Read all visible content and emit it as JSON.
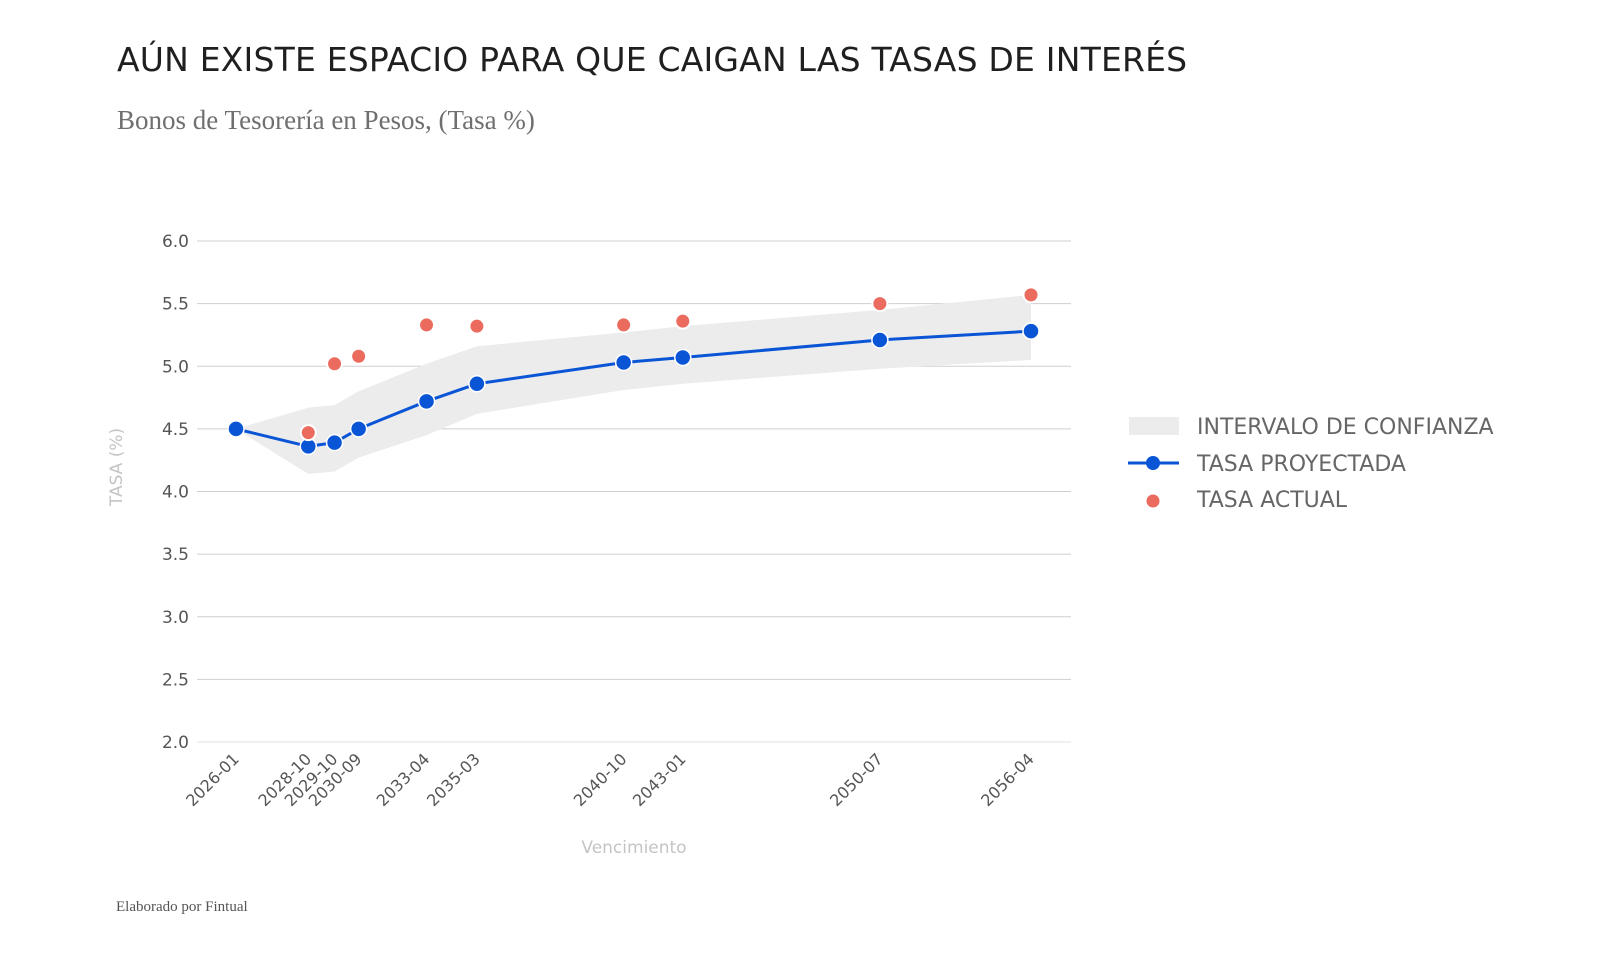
{
  "header": {
    "title": "AÚN EXISTE ESPACIO PARA QUE CAIGAN LAS TASAS DE INTERÉS",
    "subtitle": "Bonos de Tesorería en Pesos, (Tasa %)"
  },
  "footer": {
    "credit": "Elaborado por Fintual"
  },
  "colors": {
    "projected": "#0a55d6",
    "actual": "#eb6b5e",
    "band": "#ececec",
    "grid": "#cfcfcf"
  },
  "chart_data": {
    "type": "line",
    "title": "AÚN EXISTE ESPACIO PARA QUE CAIGAN LAS TASAS DE INTERÉS",
    "subtitle": "Bonos de Tesorería en Pesos, (Tasa %)",
    "xlabel": "Vencimiento",
    "ylabel": "TASA (%)",
    "ylim": [
      2.0,
      6.0
    ],
    "yticks": [
      "2.0",
      "2.5",
      "3.0",
      "3.5",
      "4.0",
      "4.5",
      "5.0",
      "5.5",
      "6.0"
    ],
    "grid": true,
    "legend_position": "right",
    "x": [
      "2026-01",
      "2028-10",
      "2029-10",
      "2030-09",
      "2033-04",
      "2035-03",
      "2040-10",
      "2043-01",
      "2050-07",
      "2056-04"
    ],
    "series": [
      {
        "name": "INTERVALO DE CONFIANZA",
        "type": "band",
        "upper": [
          4.5,
          4.67,
          4.69,
          4.8,
          5.02,
          5.16,
          5.27,
          5.32,
          5.45,
          5.57
        ],
        "lower": [
          4.5,
          4.14,
          4.16,
          4.27,
          4.45,
          4.62,
          4.81,
          4.86,
          4.98,
          5.05
        ]
      },
      {
        "name": "TASA PROYECTADA",
        "type": "line",
        "values": [
          4.5,
          4.36,
          4.39,
          4.5,
          4.72,
          4.86,
          5.03,
          5.07,
          5.21,
          5.28
        ]
      },
      {
        "name": "TASA ACTUAL",
        "type": "scatter",
        "values": [
          null,
          4.47,
          5.02,
          5.08,
          5.33,
          5.32,
          5.33,
          5.36,
          5.5,
          5.57
        ]
      }
    ]
  }
}
